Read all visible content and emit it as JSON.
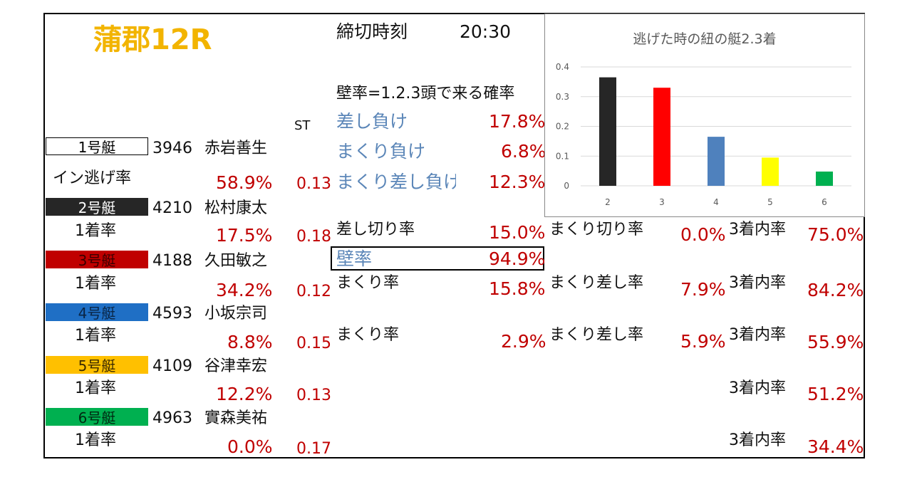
{
  "venue": "蒲郡12R",
  "deadline": {
    "label": "締切時刻",
    "time": "20:30"
  },
  "kabe_caption": "壁率=1.2.3頭で来る確率",
  "st_label": "ST",
  "in_nige_label": "イン逃げ率",
  "boats": [
    {
      "label": "1号艇",
      "id": "3946",
      "name": "赤岩善生",
      "rate_label": "イン逃げ率",
      "rate": "58.9%",
      "st": "0.13",
      "color": "#ffffff"
    },
    {
      "label": "2号艇",
      "id": "4210",
      "name": "松村康太",
      "rate_label": "1着率",
      "rate": "17.5%",
      "st": "0.18",
      "color": "#222222"
    },
    {
      "label": "3号艇",
      "id": "4188",
      "name": "久田敏之",
      "rate_label": "1着率",
      "rate": "34.2%",
      "st": "0.12",
      "color": "#c00000"
    },
    {
      "label": "4号艇",
      "id": "4593",
      "name": "小坂宗司",
      "rate_label": "1着率",
      "rate": "8.8%",
      "st": "0.15",
      "color": "#1f6fc5"
    },
    {
      "label": "5号艇",
      "id": "4109",
      "name": "谷津幸宏",
      "rate_label": "1着率",
      "rate": "12.2%",
      "st": "0.13",
      "color": "#ffc000"
    },
    {
      "label": "6号艇",
      "id": "4963",
      "name": "實森美祐",
      "rate_label": "1着率",
      "rate": "0.0%",
      "st": "0.17",
      "color": "#00b050"
    }
  ],
  "lose": [
    {
      "label": "差し負け",
      "value": "17.8%"
    },
    {
      "label": "まくり負け",
      "value": "6.8%"
    },
    {
      "label": "まくり差し負け",
      "value": "12.3%"
    }
  ],
  "stats": {
    "sashikiri_label": "差し切り率",
    "sashikiri": "15.0%",
    "kabe_label": "壁率",
    "kabe": "94.9%",
    "makuri3_label": "まくり率",
    "makuri3": "15.8%",
    "makuri4_label": "まくり率",
    "makuri4": "2.9%",
    "makurikiri_label": "まくり切り率",
    "makurikiri": "0.0%",
    "makurisashi3_label": "まくり差し率",
    "makurisashi3": "7.9%",
    "makurisashi4_label": "まくり差し率",
    "makurisashi4": "5.9%"
  },
  "top3": [
    {
      "label": "3着内率",
      "value": "75.0%"
    },
    {
      "label": "3着内率",
      "value": "84.2%"
    },
    {
      "label": "3着内率",
      "value": "55.9%"
    },
    {
      "label": "3着内率",
      "value": "51.2%"
    },
    {
      "label": "3着内率",
      "value": "34.4%"
    }
  ],
  "chart_data": {
    "type": "bar",
    "title": "逃げた時の紐の艇2.3着",
    "categories": [
      "2",
      "3",
      "4",
      "5",
      "6"
    ],
    "values": [
      0.365,
      0.33,
      0.165,
      0.095,
      0.048
    ],
    "colors": [
      "#262626",
      "#ff0000",
      "#4f81bd",
      "#ffff00",
      "#00b050"
    ],
    "ylim": [
      0,
      0.4
    ],
    "yticks": [
      "0",
      "0.1",
      "0.2",
      "0.3",
      "0.4"
    ],
    "grid": true
  }
}
